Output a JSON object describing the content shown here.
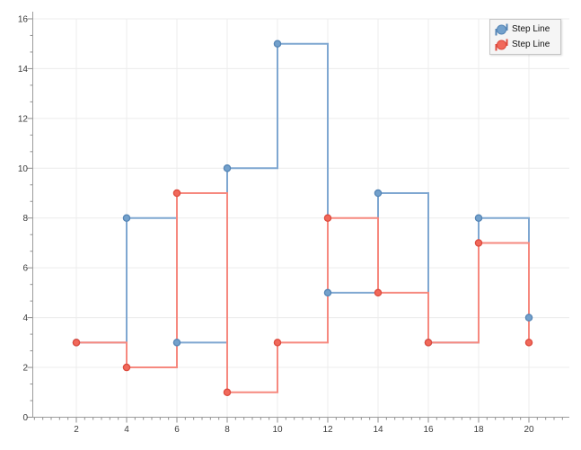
{
  "chart_data": {
    "type": "line",
    "line_style": "step",
    "title": "",
    "xlabel": "",
    "ylabel": "",
    "x": [
      2,
      4,
      6,
      8,
      10,
      12,
      14,
      16,
      18,
      20
    ],
    "series": [
      {
        "name": "Step Line",
        "line_color": "#7FA7D1",
        "marker_fill": "#73A1CC",
        "marker_stroke": "#5585B5",
        "values": [
          3,
          8,
          3,
          10,
          15,
          5,
          9,
          3,
          8,
          4
        ]
      },
      {
        "name": "Step Line",
        "line_color": "#F6897F",
        "marker_fill": "#F1695B",
        "marker_stroke": "#DD4B3E",
        "values": [
          3,
          2,
          9,
          1,
          3,
          8,
          5,
          3,
          7,
          3
        ]
      }
    ],
    "x_ticks": [
      2,
      4,
      6,
      8,
      10,
      12,
      14,
      16,
      18,
      20
    ],
    "y_ticks": [
      0,
      2,
      4,
      6,
      8,
      10,
      12,
      14,
      16
    ],
    "xlim": [
      0.25,
      21.6
    ],
    "ylim": [
      0,
      16.3
    ],
    "grid": true,
    "legend_position": "top-right",
    "colors": {
      "background": "#ffffff",
      "grid": "#ececec",
      "axis": "#9b9b9b",
      "tick": "#8f8f8f",
      "label": "#3c3c3c",
      "legend_bg": "#f5f5f5",
      "legend_border": "#c5c5c5"
    }
  },
  "legend": {
    "items": [
      {
        "label": "Step Line"
      },
      {
        "label": "Step Line"
      }
    ]
  }
}
